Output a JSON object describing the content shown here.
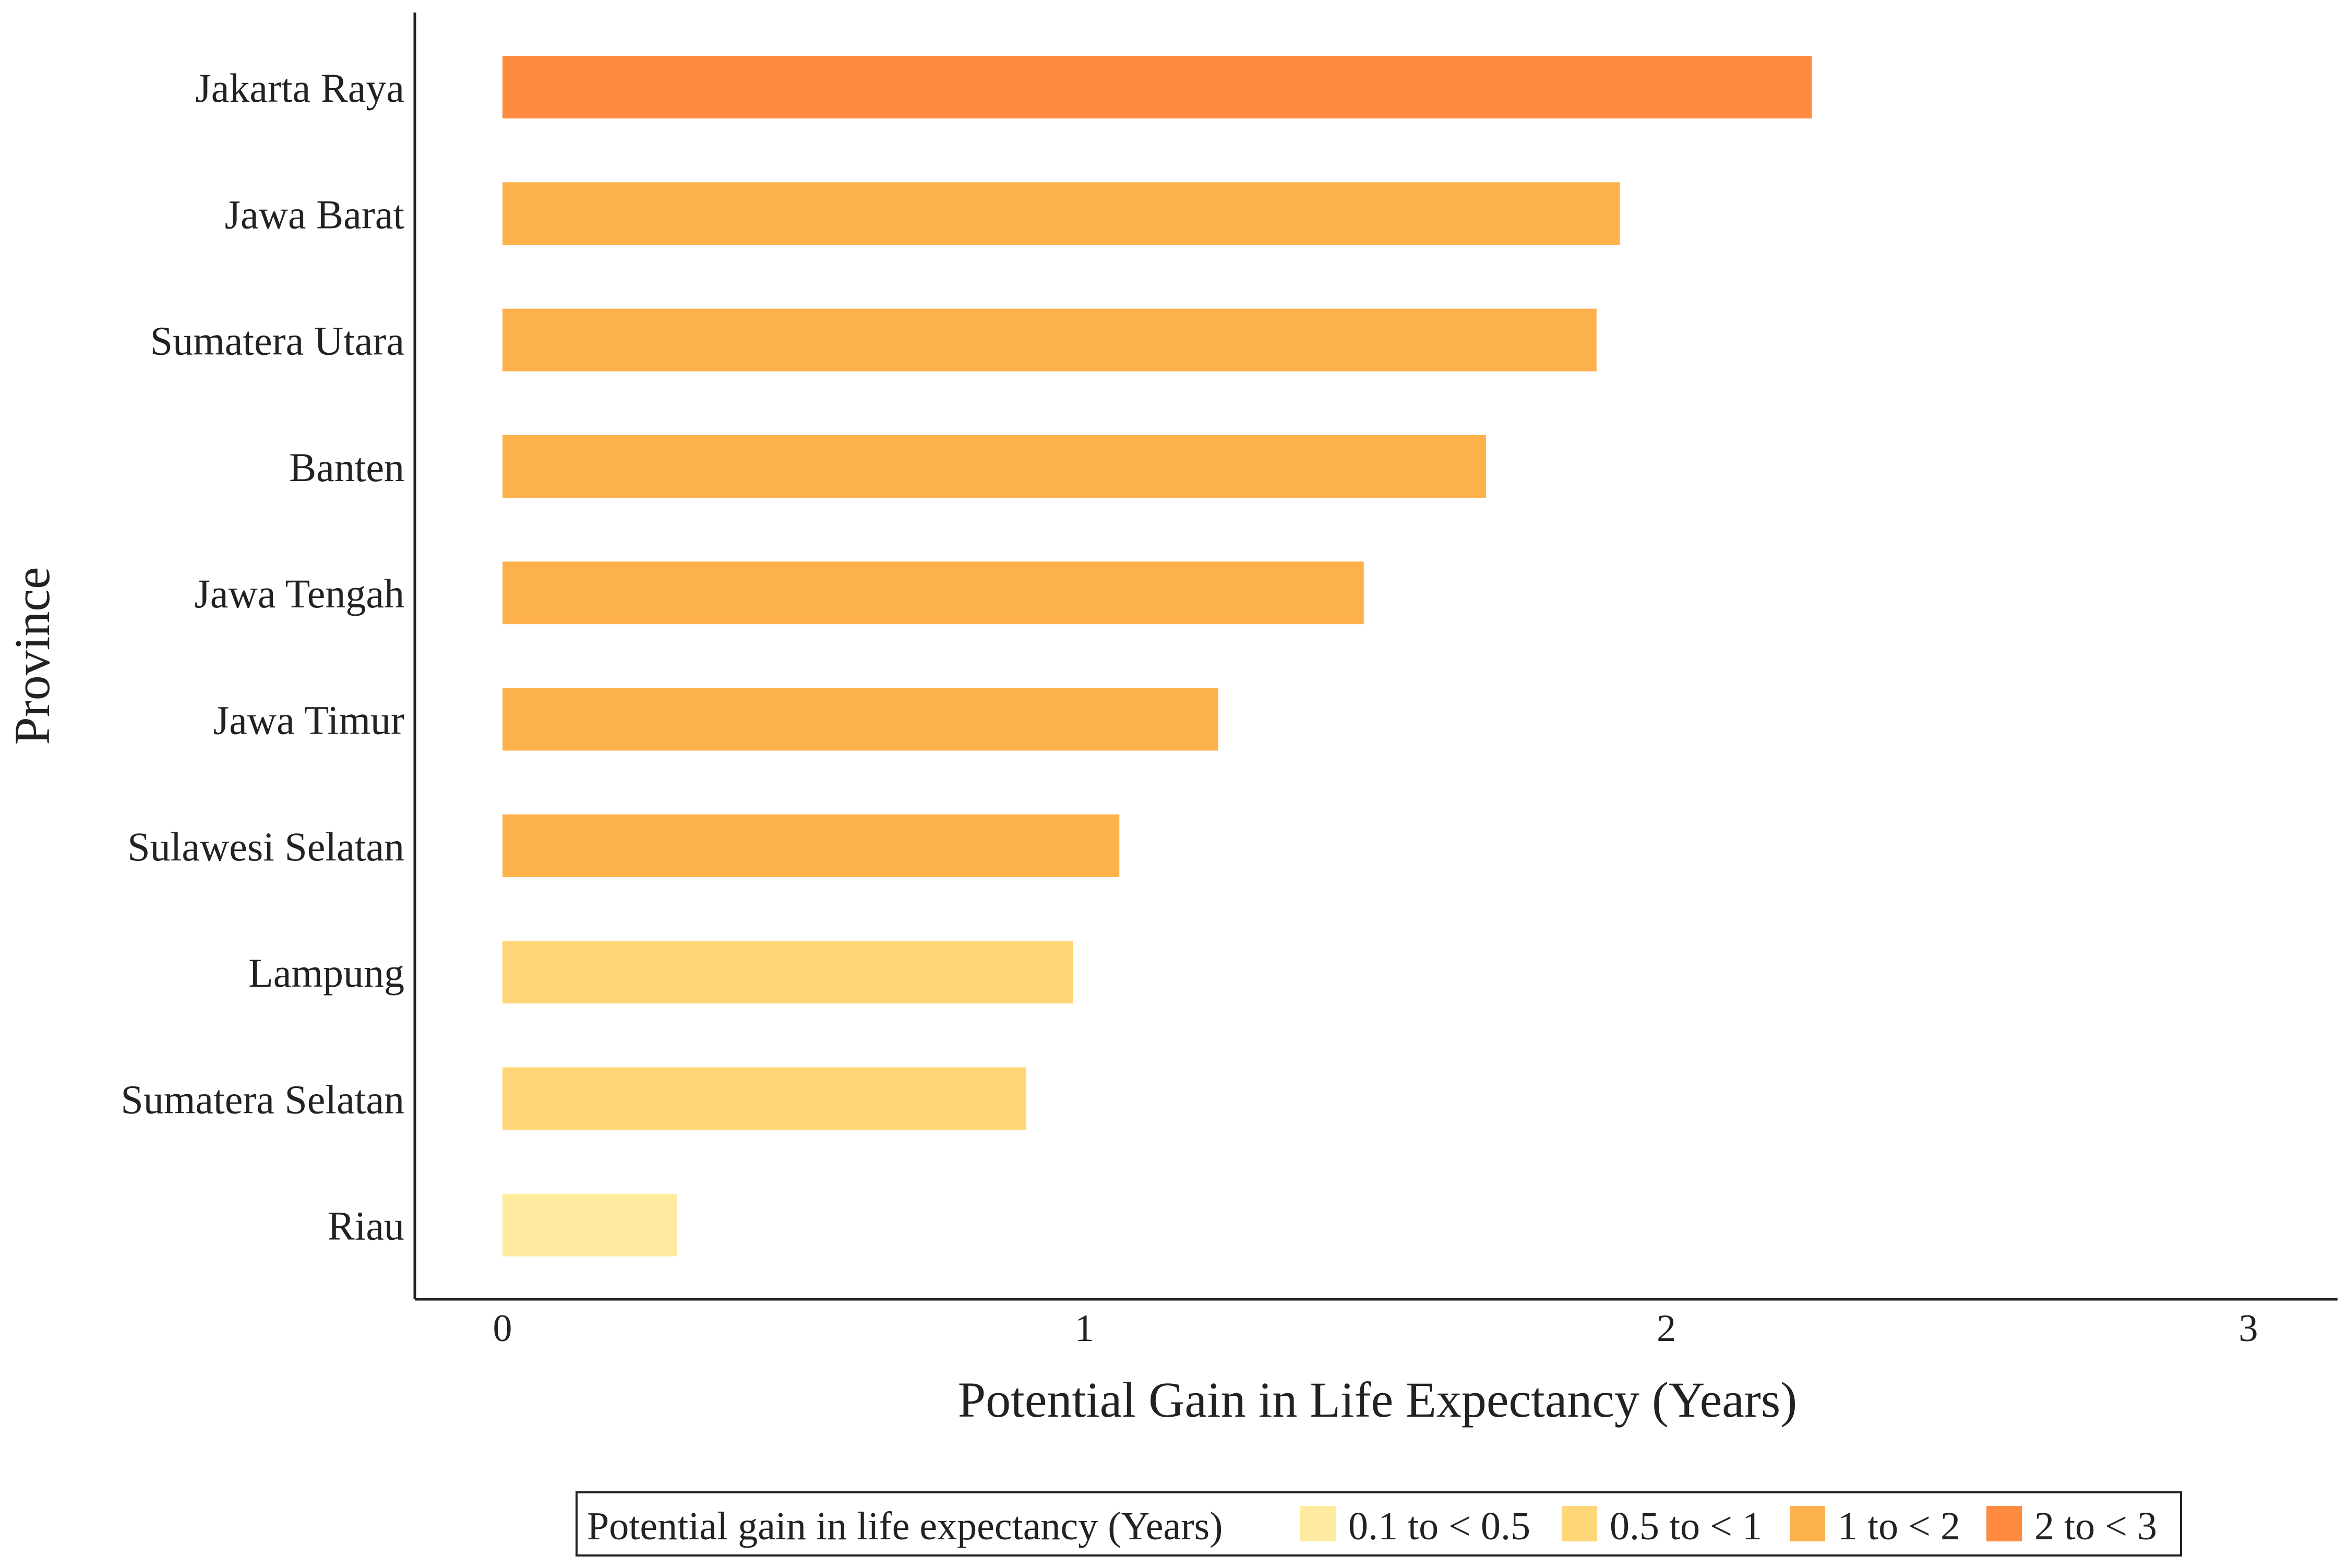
{
  "chart_data": {
    "type": "bar",
    "orientation": "horizontal",
    "title": "",
    "xlabel": "Potential Gain in Life Expectancy (Years)",
    "ylabel": "Province",
    "xlim": [
      0,
      3
    ],
    "xticks": [
      "0",
      "1",
      "2",
      "3"
    ],
    "grid": false,
    "legend_position": "bottom",
    "categories": [
      "Jakarta Raya",
      "Jawa Barat",
      "Sumatera Utara",
      "Banten",
      "Jawa Tengah",
      "Jawa Timur",
      "Sulawesi Selatan",
      "Lampung",
      "Sumatera Selatan",
      "Riau"
    ],
    "values": [
      2.25,
      1.92,
      1.88,
      1.69,
      1.48,
      1.23,
      1.06,
      0.98,
      0.9,
      0.3
    ],
    "value_class": [
      3,
      2,
      2,
      2,
      2,
      2,
      2,
      1,
      1,
      0
    ],
    "legend": {
      "title": "Potential gain in life expectancy (Years)",
      "items": [
        {
          "label": "0.1 to < 0.5",
          "color": "#FFEB9F"
        },
        {
          "label": "0.5 to < 1",
          "color": "#FFD778"
        },
        {
          "label": "1 to < 2",
          "color": "#FDB14B"
        },
        {
          "label": "2 to < 3",
          "color": "#FE8B3F"
        }
      ]
    }
  }
}
